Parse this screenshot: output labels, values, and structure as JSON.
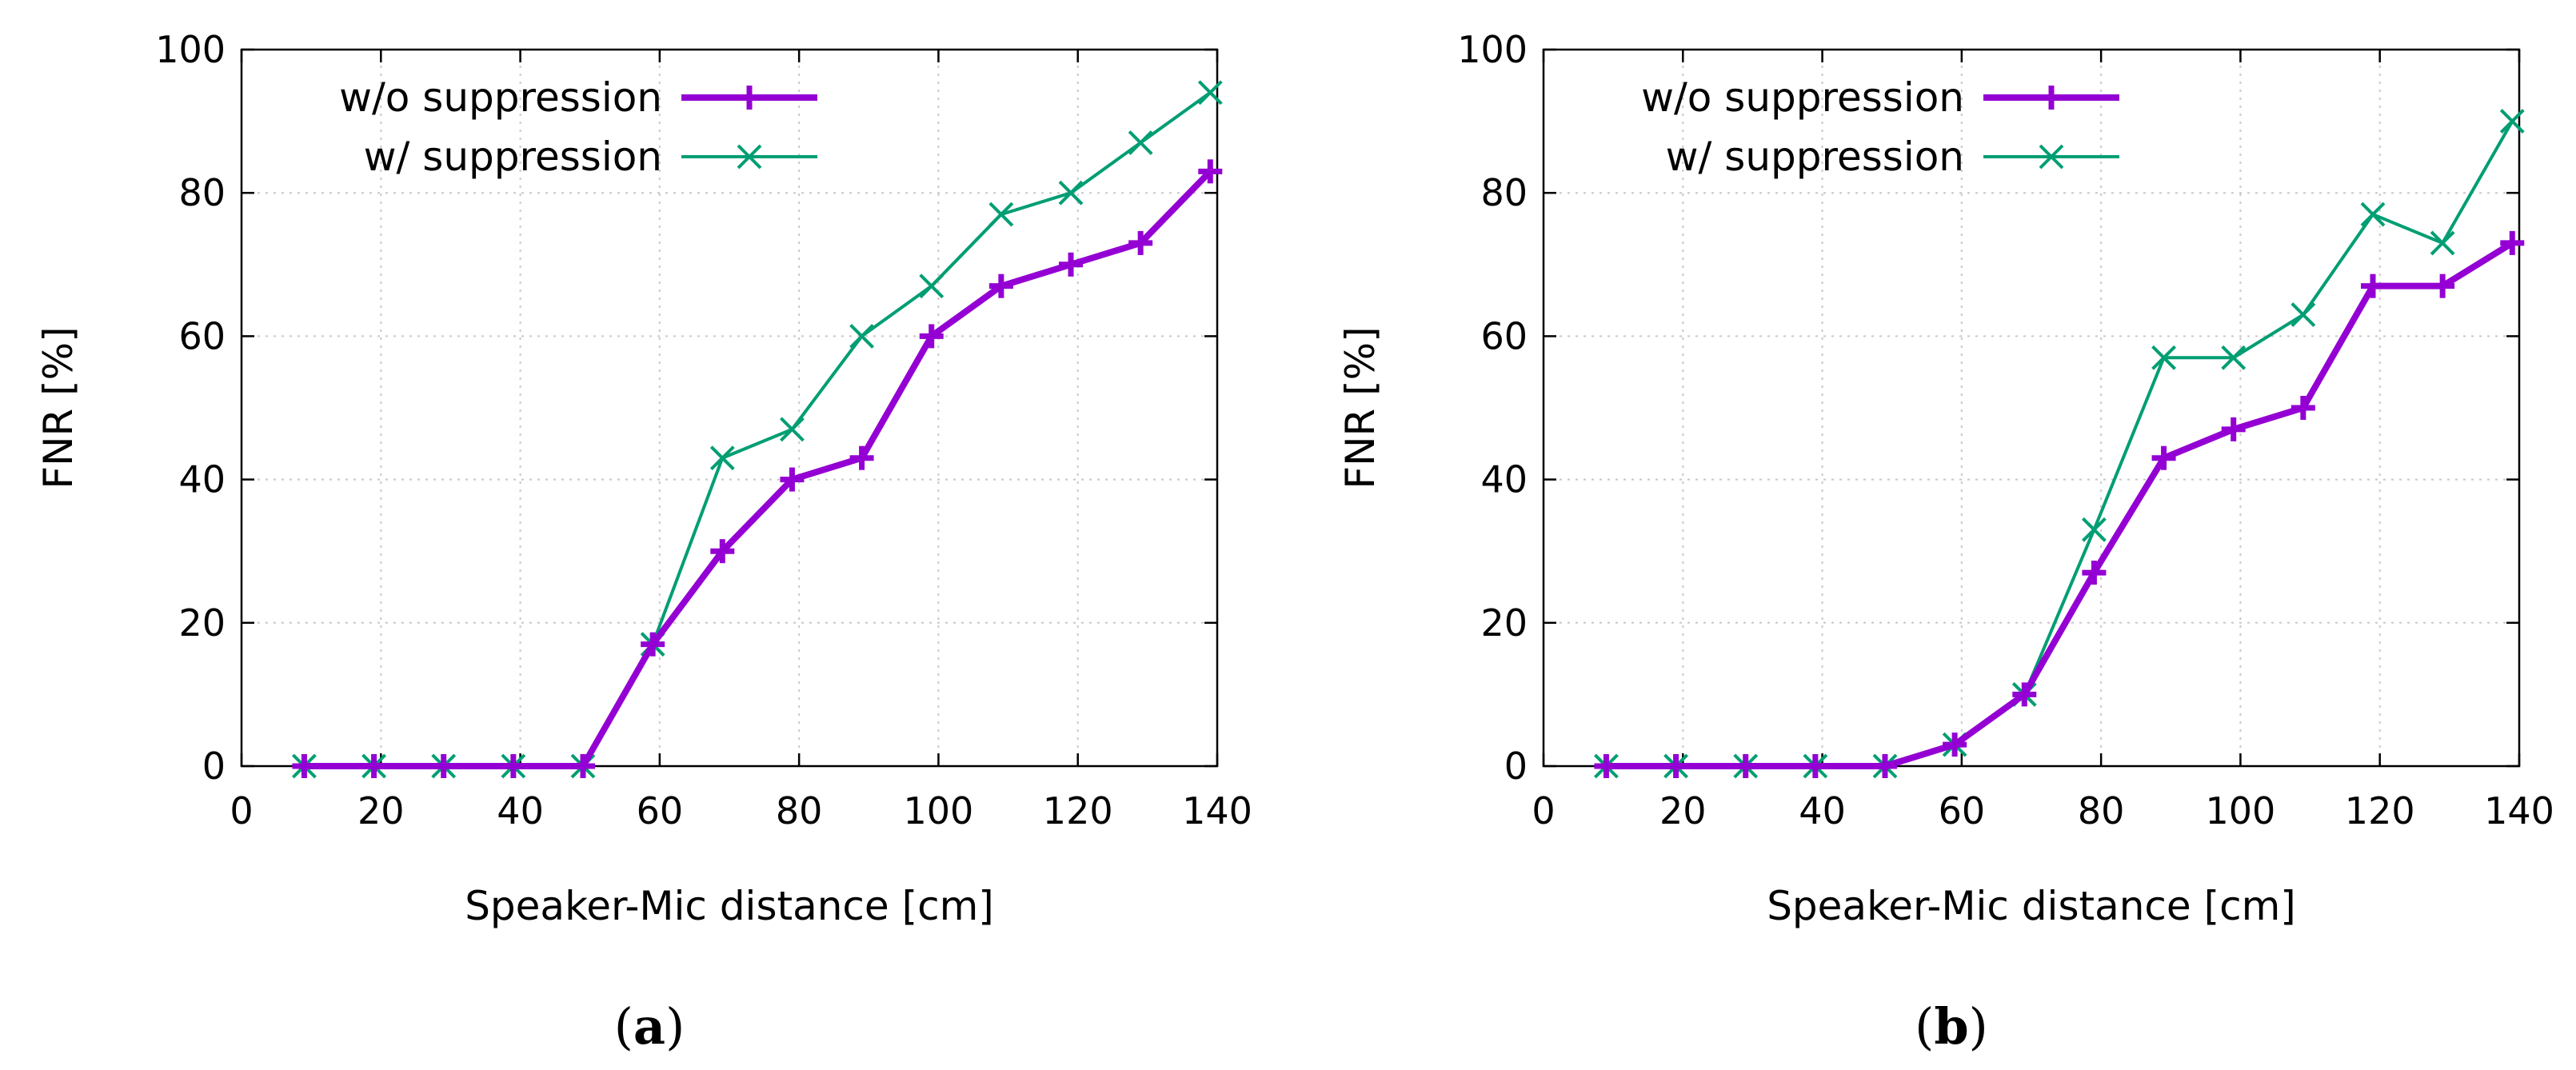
{
  "chart_data": [
    {
      "type": "line",
      "caption": "a",
      "xlabel": "Speaker-Mic distance [cm]",
      "ylabel": "FNR [%]",
      "xlim": [
        0,
        140
      ],
      "ylim": [
        0,
        100
      ],
      "xticks": [
        0,
        20,
        40,
        60,
        80,
        100,
        120,
        140
      ],
      "yticks": [
        0,
        20,
        40,
        60,
        80,
        100
      ],
      "grid": true,
      "legend_position": "top-left",
      "x": [
        9,
        19,
        29,
        39,
        49,
        59,
        69,
        79,
        89,
        99,
        109,
        119,
        129,
        139
      ],
      "series": [
        {
          "name": "w/o suppression",
          "color": "#9400d3",
          "marker": "plus",
          "values": [
            0,
            0,
            0,
            0,
            0,
            17,
            30,
            40,
            43,
            60,
            67,
            70,
            73,
            83
          ]
        },
        {
          "name": "w/ suppression",
          "color": "#009e73",
          "marker": "cross",
          "values": [
            0,
            0,
            0,
            0,
            0,
            17,
            43,
            47,
            60,
            67,
            77,
            80,
            87,
            94
          ]
        }
      ]
    },
    {
      "type": "line",
      "caption": "b",
      "xlabel": "Speaker-Mic distance [cm]",
      "ylabel": "FNR [%]",
      "xlim": [
        0,
        140
      ],
      "ylim": [
        0,
        100
      ],
      "xticks": [
        0,
        20,
        40,
        60,
        80,
        100,
        120,
        140
      ],
      "yticks": [
        0,
        20,
        40,
        60,
        80,
        100
      ],
      "grid": true,
      "legend_position": "top-left",
      "x": [
        9,
        19,
        29,
        39,
        49,
        59,
        69,
        79,
        89,
        99,
        109,
        119,
        129,
        139
      ],
      "series": [
        {
          "name": "w/o suppression",
          "color": "#9400d3",
          "marker": "plus",
          "values": [
            0,
            0,
            0,
            0,
            0,
            3,
            10,
            27,
            43,
            47,
            50,
            67,
            67,
            73
          ]
        },
        {
          "name": "w/ suppression",
          "color": "#009e73",
          "marker": "cross",
          "values": [
            0,
            0,
            0,
            0,
            0,
            3,
            10,
            33,
            57,
            57,
            63,
            77,
            73,
            90
          ]
        }
      ]
    }
  ]
}
